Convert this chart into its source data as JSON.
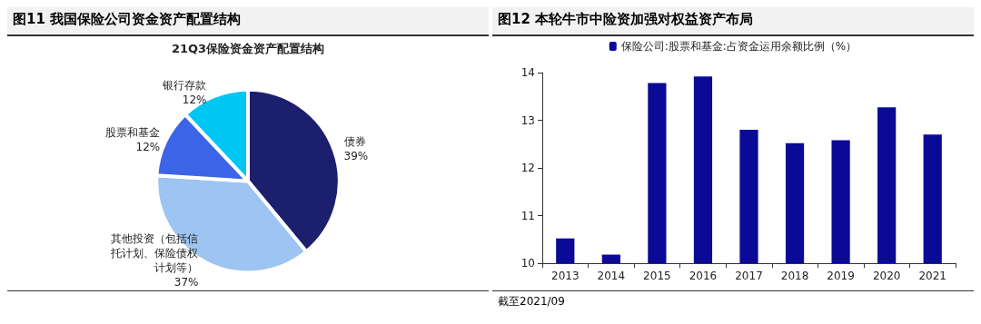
{
  "chart_data": [
    {
      "type": "pie",
      "title": "图11 我国保险公司资金资产配置结构",
      "subtitle": "21Q3保险资金资产配置结构",
      "categories": [
        "债券",
        "其他投资（包括信托计划、保险债权计划等）",
        "股票和基金",
        "银行存款"
      ],
      "values": [
        39,
        37,
        12,
        12
      ],
      "colors": [
        "#1c1f6e",
        "#9ec4f2",
        "#3b64e6",
        "#00c6f4"
      ],
      "value_labels": [
        "39%",
        "37%",
        "12%",
        "12%"
      ],
      "legend": false
    },
    {
      "type": "bar",
      "title": "图12 本轮牛市中险资加强对权益资产布局",
      "categories": [
        "2013",
        "2014",
        "2015",
        "2016",
        "2017",
        "2018",
        "2019",
        "2020",
        "2021"
      ],
      "series": [
        {
          "name": "保险公司:股票和基金:占资金运用余额比例（%）",
          "color": "#0a0a96",
          "values": [
            10.52,
            10.18,
            13.78,
            13.92,
            12.8,
            12.52,
            12.58,
            13.27,
            12.7
          ]
        }
      ],
      "ylim": [
        10,
        14
      ],
      "yticks": [
        10,
        11,
        12,
        13,
        14
      ],
      "grid": false,
      "legend": "top",
      "annotations": [
        "截至2021/09"
      ]
    }
  ]
}
